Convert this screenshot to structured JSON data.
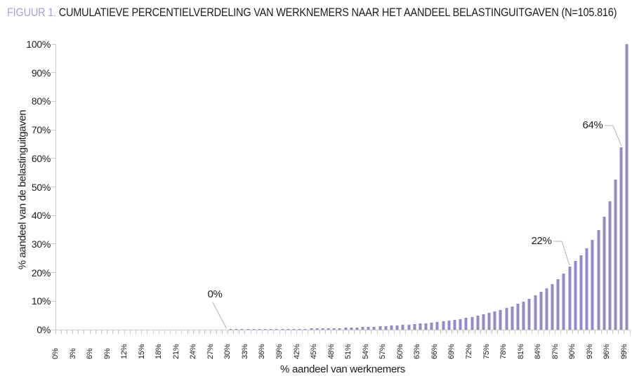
{
  "figure": {
    "label": "FIGUUR 1.",
    "title": "CUMULATIEVE PERCENTIELVERDELING VAN WERKNEMERS NAAR HET AANDEEL BELASTINGUITGAVEN (N=105.816)"
  },
  "chart_data": {
    "type": "bar",
    "title": "FIGUUR 1. CUMULATIEVE PERCENTIELVERDELING VAN WERKNEMERS NAAR HET AANDEEL BELASTINGUITGAVEN (N=105.816)",
    "xlabel": "% aandeel van werknemers",
    "ylabel": "% aandeel van de belastinguitgaven",
    "x_unit": "percentile of workers, bars at 1..100",
    "ylim": [
      0,
      100
    ],
    "grid": false,
    "bar_color": "#938bc8",
    "bar_edge_color": "#c9c5e6",
    "accent_color": "#a7a2d8",
    "y_tick_labels": [
      "0%",
      "10%",
      "20%",
      "30%",
      "40%",
      "50%",
      "60%",
      "70%",
      "80%",
      "90%",
      "100%"
    ],
    "x_tick_labels": [
      "0%",
      "3%",
      "6%",
      "9%",
      "12%",
      "15%",
      "18%",
      "21%",
      "24%",
      "27%",
      "30%",
      "33%",
      "36%",
      "39%",
      "42%",
      "45%",
      "48%",
      "51%",
      "54%",
      "57%",
      "60%",
      "63%",
      "66%",
      "69%",
      "72%",
      "75%",
      "78%",
      "81%",
      "84%",
      "87%",
      "90%",
      "93%",
      "96%",
      "99%"
    ],
    "values": [
      0,
      0,
      0,
      0,
      0,
      0,
      0,
      0,
      0,
      0,
      0,
      0,
      0,
      0,
      0,
      0,
      0,
      0,
      0,
      0,
      0,
      0,
      0,
      0,
      0,
      0,
      0,
      0,
      0,
      0,
      0.1,
      0.1,
      0.15,
      0.15,
      0.15,
      0.2,
      0.2,
      0.2,
      0.25,
      0.25,
      0.3,
      0.3,
      0.35,
      0.35,
      0.4,
      0.4,
      0.45,
      0.5,
      0.55,
      0.6,
      0.7,
      0.75,
      0.85,
      0.9,
      1.0,
      1.1,
      1.2,
      1.3,
      1.4,
      1.5,
      1.65,
      1.8,
      1.95,
      2.1,
      2.3,
      2.5,
      2.7,
      2.9,
      3.2,
      3.5,
      3.8,
      4.1,
      4.5,
      4.9,
      5.3,
      5.8,
      6.3,
      6.9,
      7.5,
      8.2,
      9.0,
      9.9,
      10.9,
      12.0,
      13.2,
      14.5,
      16.0,
      17.7,
      19.6,
      22,
      24,
      26,
      28.5,
      31.5,
      35,
      39.5,
      45,
      52.5,
      64,
      100
    ],
    "annotations": [
      {
        "label": "0%",
        "percentile": 30,
        "value": 0
      },
      {
        "label": "22%",
        "percentile": 90,
        "value": 22
      },
      {
        "label": "64%",
        "percentile": 99,
        "value": 64
      }
    ]
  }
}
